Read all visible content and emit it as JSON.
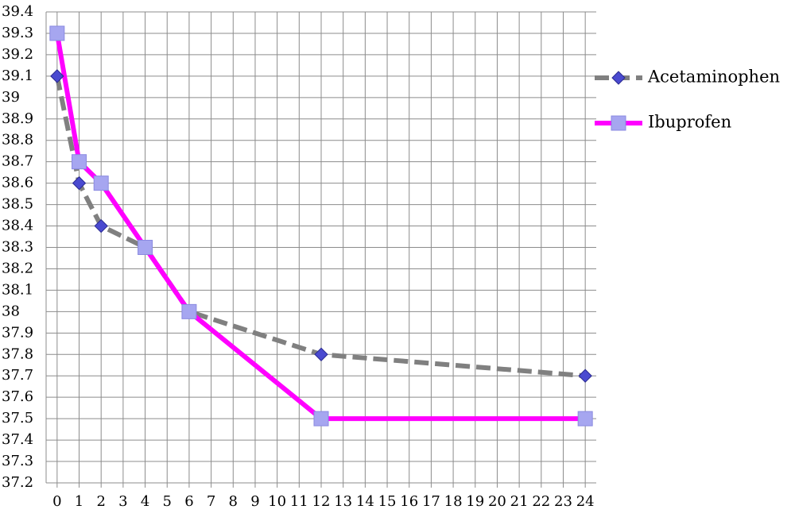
{
  "chart_data": {
    "type": "line",
    "series": [
      {
        "name": "Acetaminophen",
        "color": "#808080",
        "marker_color": "#4a4ad0",
        "dash": true,
        "marker": "diamond",
        "x": [
          0,
          1,
          2,
          4,
          6,
          12,
          24
        ],
        "values": [
          39.1,
          38.6,
          38.4,
          38.3,
          38.0,
          37.8,
          37.7
        ]
      },
      {
        "name": "Ibuprofen",
        "color": "#ff00ff",
        "marker_color": "#a6a6f0",
        "dash": false,
        "marker": "square",
        "x": [
          0,
          1,
          2,
          4,
          6,
          12,
          24
        ],
        "values": [
          39.3,
          38.7,
          38.6,
          38.3,
          38.0,
          37.5,
          37.5
        ]
      }
    ],
    "xlim": [
      -0.5,
      24.5
    ],
    "xticks": [
      0,
      1,
      2,
      3,
      4,
      5,
      6,
      7,
      8,
      9,
      10,
      11,
      12,
      13,
      14,
      15,
      16,
      17,
      18,
      19,
      20,
      21,
      22,
      23,
      24
    ],
    "ylim": [
      37.2,
      39.4
    ],
    "yticks": [
      37.2,
      37.3,
      37.4,
      37.5,
      37.6,
      37.7,
      37.8,
      37.9,
      38,
      38.1,
      38.2,
      38.3,
      38.4,
      38.5,
      38.6,
      38.7,
      38.8,
      38.9,
      39,
      39.1,
      39.2,
      39.3,
      39.4
    ],
    "grid": true,
    "legend": "right"
  }
}
